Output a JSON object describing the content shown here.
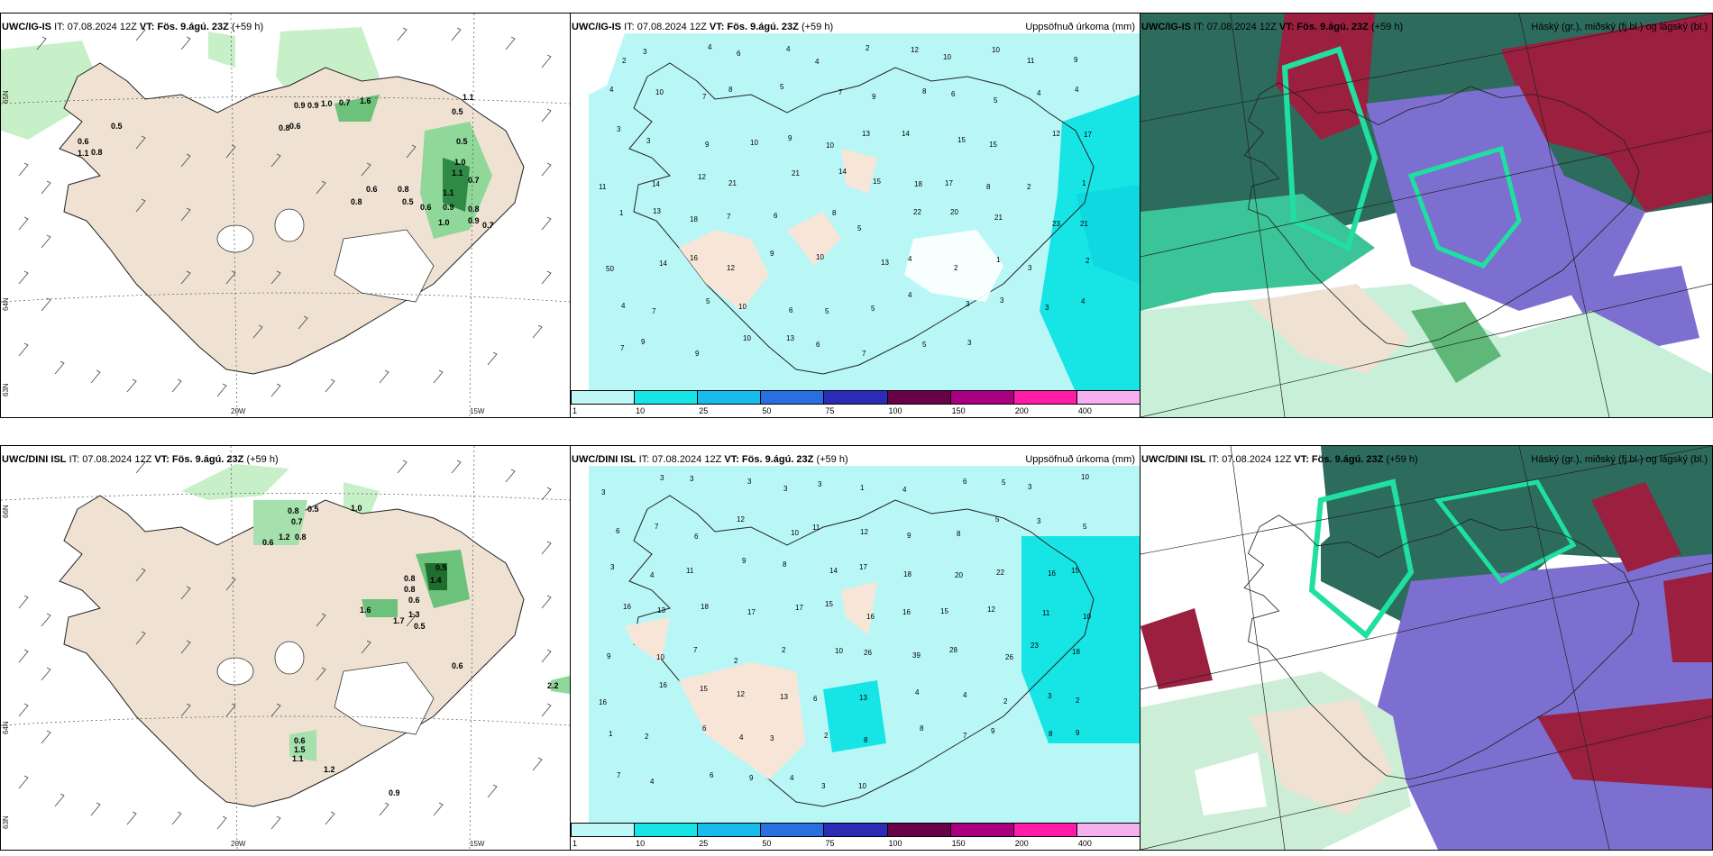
{
  "rows": [
    {
      "model": "UWC/IG-IS",
      "wind_panel": {
        "model": "UWC/IG-IS",
        "it_label": "IT: 07.08.2024 12Z",
        "vt_label": "VT: Fös. 9.ágú. 23Z",
        "lead": "(+59 h)",
        "precip_labels": [
          "0.5",
          "0.6",
          "1.1",
          "0.8",
          "0.9",
          "0.9",
          "1.0",
          "0.7",
          "1.6",
          "0.8",
          "0.6",
          "1.1",
          "0.5",
          "0.5",
          "1.0",
          "1.1",
          "0.7",
          "0.6",
          "0.8",
          "0.5",
          "0.6",
          "1.1",
          "0.9",
          "0.8",
          "0.9",
          "0.7",
          "1.0",
          "0.8"
        ],
        "lat_labels": [
          "65N",
          "64N",
          "63N"
        ],
        "lon_labels": [
          "20W",
          "15W"
        ]
      },
      "precip_panel": {
        "model": "UWC/IG-IS",
        "it_label": "IT: 07.08.2024 12Z",
        "vt_label": "VT: Fös. 9.ágú. 23Z",
        "lead": "(+59 h)",
        "right_title": "Uppsöfnuð úrkoma (mm)",
        "values": [
          "2",
          "3",
          "4",
          "6",
          "4",
          "4",
          "2",
          "12",
          "10",
          "10",
          "11",
          "9",
          "4",
          "10",
          "7",
          "8",
          "5",
          "7",
          "9",
          "8",
          "6",
          "5",
          "4",
          "4",
          "3",
          "3",
          "9",
          "10",
          "9",
          "10",
          "13",
          "14",
          "15",
          "15",
          "12",
          "17",
          "11",
          "14",
          "12",
          "21",
          "21",
          "14",
          "15",
          "18",
          "17",
          "8",
          "2",
          "1",
          "1",
          "13",
          "18",
          "7",
          "6",
          "8",
          "5",
          "22",
          "20",
          "21",
          "23",
          "21",
          "50",
          "14",
          "16",
          "12",
          "9",
          "10",
          "13",
          "4",
          "2",
          "1",
          "3",
          "2",
          "4",
          "7",
          "5",
          "10",
          "6",
          "5",
          "5",
          "4",
          "3",
          "3",
          "3",
          "4",
          "7",
          "9",
          "9",
          "10",
          "13",
          "6",
          "7",
          "5",
          "3"
        ],
        "colorbar": [
          "1",
          "10",
          "25",
          "50",
          "75",
          "100",
          "150",
          "200",
          "400"
        ]
      },
      "cloud_panel": {
        "model": "UWC/IG-IS",
        "it_label": "IT: 07.08.2024 12Z",
        "vt_label": "VT: Fös. 9.ágú. 23Z",
        "lead": "(+59 h)",
        "right_title": "Háský (gr.), miðský (fj.bl.) og lágský (bl.)"
      }
    },
    {
      "model": "UWC/DINI ISL",
      "wind_panel": {
        "model": "UWC/DINI ISL",
        "it_label": "IT: 07.08.2024 12Z",
        "vt_label": "VT: Fös. 9.ágú. 23Z",
        "lead": "(+59 h)",
        "precip_labels": [
          "0.8",
          "0.5",
          "1.0",
          "0.7",
          "0.6",
          "1.2",
          "0.8",
          "0.5",
          "0.8",
          "0.8",
          "1.4",
          "0.6",
          "1.6",
          "1.7",
          "1.3",
          "0.5",
          "0.6",
          "0.6",
          "1.5",
          "1.1",
          "1.2",
          "0.9",
          "2.2"
        ],
        "lat_labels": [
          "66N",
          "64N",
          "63N"
        ],
        "lon_labels": [
          "20W",
          "15W"
        ]
      },
      "precip_panel": {
        "model": "UWC/DINI ISL",
        "it_label": "IT: 07.08.2024 12Z",
        "vt_label": "VT: Fös. 9.ágú. 23Z",
        "lead": "(+59 h)",
        "right_title": "Uppsöfnuð úrkoma (mm)",
        "values": [
          "3",
          "3",
          "3",
          "3",
          "3",
          "3",
          "1",
          "4",
          "6",
          "5",
          "3",
          "10",
          "6",
          "7",
          "6",
          "12",
          "10",
          "11",
          "12",
          "9",
          "8",
          "5",
          "3",
          "5",
          "3",
          "4",
          "11",
          "9",
          "8",
          "14",
          "17",
          "18",
          "20",
          "22",
          "16",
          "15",
          "16",
          "13",
          "18",
          "17",
          "17",
          "15",
          "16",
          "16",
          "15",
          "12",
          "11",
          "10",
          "9",
          "10",
          "7",
          "2",
          "2",
          "10",
          "26",
          "39",
          "28",
          "26",
          "23",
          "18",
          "16",
          "16",
          "15",
          "12",
          "13",
          "6",
          "13",
          "4",
          "4",
          "2",
          "3",
          "2",
          "1",
          "2",
          "6",
          "4",
          "3",
          "2",
          "8",
          "8",
          "7",
          "9",
          "8",
          "9",
          "7",
          "4",
          "6",
          "9",
          "4",
          "3",
          "10"
        ],
        "colorbar": [
          "1",
          "10",
          "25",
          "50",
          "75",
          "100",
          "150",
          "200",
          "400"
        ]
      },
      "cloud_panel": {
        "model": "UWC/DINI ISL",
        "it_label": "IT: 07.08.2024 12Z",
        "vt_label": "VT: Fös. 9.ágú. 23Z",
        "lead": "(+59 h)",
        "right_title": "Háský (gr.), miðský (fj.bl.) og lágský (bl.)"
      }
    }
  ],
  "colors": {
    "land": "#efe2d3",
    "glacier": "#ffffff",
    "precip_light": "#b9f7f7",
    "precip_mid": "#17e5e5",
    "green_light": "#c8f0c8",
    "green_dark": "#1f7a3a",
    "high_cloud": "#2d6b5c",
    "mid_cloud": "#7c6fd0",
    "low_cloud": "#9b1f3f",
    "colorbar": [
      "#bff7f7",
      "#17e5e5",
      "#18bcea",
      "#2a6fe0",
      "#2b2bb8",
      "#6a0046",
      "#a80080",
      "#ff1aa8",
      "#f5b0f0"
    ]
  }
}
